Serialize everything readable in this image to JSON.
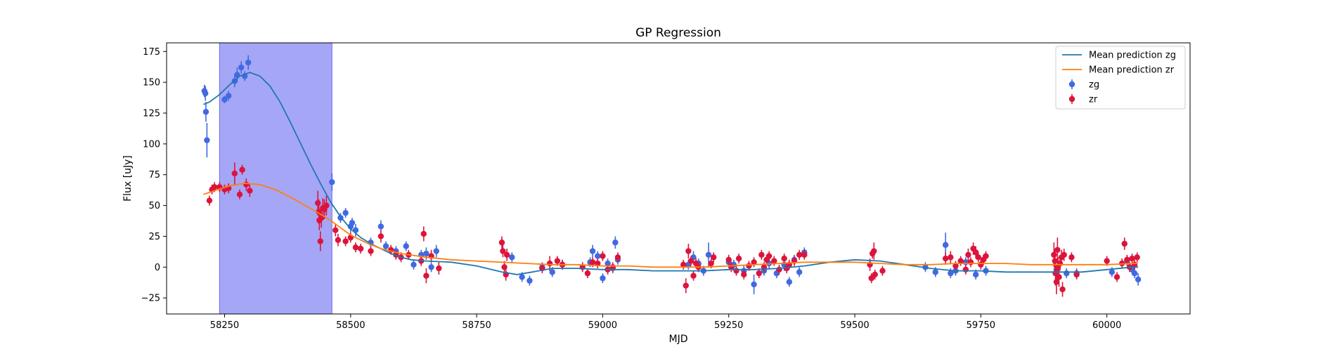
{
  "chart_data": {
    "type": "scatter",
    "title": "GP Regression",
    "xlabel": "MJD",
    "ylabel": "Flux [uJy]",
    "xlim": [
      58135,
      60165
    ],
    "ylim": [
      -38,
      182
    ],
    "xticks": [
      58250,
      58500,
      58750,
      59000,
      59250,
      59500,
      59750,
      60000
    ],
    "yticks": [
      -25,
      0,
      25,
      50,
      75,
      100,
      125,
      150,
      175
    ],
    "legend_position": "top-right",
    "shaded_region": {
      "x_start": 58240,
      "x_end": 58463,
      "color": "#a6a6f7"
    },
    "series": [
      {
        "name": "Mean prediction zg",
        "kind": "line",
        "color": "#1f77b4",
        "x": [
          58208,
          58220,
          58240,
          58260,
          58280,
          58300,
          58320,
          58340,
          58360,
          58380,
          58400,
          58420,
          58440,
          58460,
          58480,
          58500,
          58520,
          58540,
          58560,
          58580,
          58600,
          58620,
          58650,
          58700,
          58750,
          58800,
          58830,
          58860,
          58900,
          58950,
          59000,
          59050,
          59100,
          59150,
          59200,
          59250,
          59300,
          59350,
          59400,
          59450,
          59500,
          59550,
          59600,
          59650,
          59700,
          59750,
          59800,
          59850,
          59900,
          59950,
          60000,
          60050,
          60062
        ],
        "y": [
          132,
          134,
          140,
          148,
          155,
          158,
          155,
          147,
          134,
          118,
          101,
          84,
          68,
          53,
          41,
          31,
          24,
          19,
          15,
          11,
          8,
          6,
          5,
          4,
          1,
          -4,
          -6,
          -4,
          -1,
          -1,
          -2,
          -2,
          -3,
          -3,
          -3,
          -2,
          -2,
          -1,
          1,
          4,
          6,
          5,
          2,
          -1,
          -3,
          -3,
          -4,
          -4,
          -4,
          -4,
          -2,
          0,
          0
        ]
      },
      {
        "name": "Mean prediction zr",
        "kind": "line",
        "color": "#ff7f0e",
        "x": [
          58208,
          58230,
          58260,
          58290,
          58320,
          58350,
          58380,
          58410,
          58440,
          58460,
          58480,
          58500,
          58530,
          58560,
          58600,
          58650,
          58700,
          58750,
          58800,
          58850,
          58900,
          58950,
          59000,
          59050,
          59100,
          59150,
          59200,
          59250,
          59300,
          59350,
          59400,
          59450,
          59500,
          59550,
          59600,
          59650,
          59700,
          59750,
          59800,
          59850,
          59900,
          59950,
          60000,
          60050,
          60062
        ],
        "y": [
          59,
          62,
          66,
          68,
          67,
          63,
          57,
          50,
          43,
          38,
          32,
          26,
          20,
          15,
          11,
          8,
          6,
          5,
          4,
          3,
          2,
          2,
          1,
          1,
          0,
          0,
          0,
          1,
          2,
          3,
          4,
          4,
          4,
          3,
          2,
          2,
          3,
          3,
          3,
          2,
          2,
          2,
          2,
          3,
          3
        ]
      },
      {
        "name": "zg",
        "kind": "errorbar",
        "color": "#4169e1",
        "points": [
          [
            58210,
            143,
            5
          ],
          [
            58212,
            141,
            6
          ],
          [
            58213,
            126,
            8
          ],
          [
            58215,
            103,
            14
          ],
          [
            58250,
            136,
            3
          ],
          [
            58258,
            139,
            4
          ],
          [
            58270,
            151,
            5
          ],
          [
            58275,
            156,
            6
          ],
          [
            58283,
            162,
            5
          ],
          [
            58290,
            155,
            4
          ],
          [
            58297,
            166,
            6
          ],
          [
            58463,
            69,
            7
          ],
          [
            58480,
            40,
            4
          ],
          [
            58490,
            44,
            4
          ],
          [
            58500,
            33,
            5
          ],
          [
            58503,
            36,
            4
          ],
          [
            58510,
            30,
            5
          ],
          [
            58540,
            20,
            4
          ],
          [
            58560,
            33,
            5
          ],
          [
            58570,
            17,
            4
          ],
          [
            58590,
            13,
            4
          ],
          [
            58610,
            17,
            4
          ],
          [
            58625,
            2,
            4
          ],
          [
            58640,
            10,
            4
          ],
          [
            58650,
            11,
            5
          ],
          [
            58660,
            0,
            4
          ],
          [
            58670,
            13,
            5
          ],
          [
            58820,
            8,
            4
          ],
          [
            58840,
            -8,
            4
          ],
          [
            58855,
            -11,
            4
          ],
          [
            58880,
            0,
            4
          ],
          [
            58900,
            -4,
            4
          ],
          [
            58920,
            2,
            4
          ],
          [
            58975,
            4,
            4
          ],
          [
            58980,
            13,
            5
          ],
          [
            58990,
            9,
            4
          ],
          [
            59000,
            -9,
            4
          ],
          [
            59010,
            3,
            4
          ],
          [
            59020,
            -1,
            4
          ],
          [
            59025,
            20,
            5
          ],
          [
            59030,
            6,
            4
          ],
          [
            59170,
            2,
            4
          ],
          [
            59180,
            8,
            5
          ],
          [
            59190,
            3,
            4
          ],
          [
            59200,
            -3,
            4
          ],
          [
            59210,
            10,
            10
          ],
          [
            59250,
            4,
            4
          ],
          [
            59260,
            2,
            4
          ],
          [
            59280,
            -3,
            4
          ],
          [
            59300,
            -14,
            8
          ],
          [
            59320,
            -3,
            4
          ],
          [
            59330,
            3,
            4
          ],
          [
            59345,
            -5,
            4
          ],
          [
            59360,
            2,
            5
          ],
          [
            59370,
            -12,
            4
          ],
          [
            59380,
            6,
            4
          ],
          [
            59390,
            -4,
            4
          ],
          [
            59400,
            12,
            4
          ],
          [
            59640,
            0,
            4
          ],
          [
            59660,
            -4,
            4
          ],
          [
            59680,
            18,
            10
          ],
          [
            59690,
            -5,
            4
          ],
          [
            59700,
            -3,
            4
          ],
          [
            59720,
            4,
            4
          ],
          [
            59740,
            -6,
            4
          ],
          [
            59760,
            -3,
            4
          ],
          [
            59900,
            -2,
            4
          ],
          [
            59920,
            -5,
            4
          ],
          [
            59940,
            -5,
            4
          ],
          [
            60010,
            -4,
            4
          ],
          [
            60040,
            5,
            4
          ],
          [
            60050,
            -2,
            4
          ],
          [
            60055,
            -5,
            4
          ],
          [
            60062,
            -10,
            5
          ]
        ]
      },
      {
        "name": "zr",
        "kind": "errorbar",
        "color": "#dc143c",
        "points": [
          [
            58220,
            54,
            4
          ],
          [
            58225,
            63,
            4
          ],
          [
            58230,
            65,
            4
          ],
          [
            58240,
            65,
            4
          ],
          [
            58250,
            63,
            4
          ],
          [
            58258,
            64,
            4
          ],
          [
            58270,
            76,
            9
          ],
          [
            58280,
            59,
            4
          ],
          [
            58285,
            79,
            4
          ],
          [
            58293,
            67,
            5
          ],
          [
            58300,
            62,
            5
          ],
          [
            58435,
            52,
            10
          ],
          [
            58437,
            45,
            10
          ],
          [
            58438,
            38,
            8
          ],
          [
            58440,
            21,
            8
          ],
          [
            58442,
            40,
            8
          ],
          [
            58445,
            48,
            8
          ],
          [
            58448,
            47,
            8
          ],
          [
            58452,
            50,
            8
          ],
          [
            58470,
            30,
            5
          ],
          [
            58475,
            22,
            5
          ],
          [
            58490,
            21,
            4
          ],
          [
            58500,
            24,
            4
          ],
          [
            58510,
            16,
            4
          ],
          [
            58520,
            15,
            4
          ],
          [
            58540,
            13,
            4
          ],
          [
            58560,
            25,
            5
          ],
          [
            58580,
            14,
            4
          ],
          [
            58590,
            10,
            4
          ],
          [
            58600,
            8,
            4
          ],
          [
            58615,
            10,
            4
          ],
          [
            58640,
            5,
            4
          ],
          [
            58645,
            27,
            6
          ],
          [
            58650,
            -7,
            6
          ],
          [
            58660,
            9,
            5
          ],
          [
            58675,
            -1,
            5
          ],
          [
            58800,
            20,
            5
          ],
          [
            58802,
            13,
            5
          ],
          [
            58805,
            0,
            5
          ],
          [
            58808,
            -6,
            5
          ],
          [
            58810,
            10,
            5
          ],
          [
            58880,
            -1,
            4
          ],
          [
            58895,
            3,
            6
          ],
          [
            58910,
            5,
            4
          ],
          [
            58920,
            2,
            4
          ],
          [
            58960,
            0,
            4
          ],
          [
            58970,
            -5,
            4
          ],
          [
            58980,
            4,
            4
          ],
          [
            58990,
            3,
            4
          ],
          [
            59000,
            9,
            4
          ],
          [
            59010,
            -2,
            4
          ],
          [
            59020,
            0,
            4
          ],
          [
            59030,
            8,
            4
          ],
          [
            59160,
            2,
            4
          ],
          [
            59165,
            -15,
            6
          ],
          [
            59170,
            13,
            6
          ],
          [
            59175,
            5,
            4
          ],
          [
            59180,
            -7,
            4
          ],
          [
            59185,
            3,
            4
          ],
          [
            59190,
            0,
            4
          ],
          [
            59215,
            3,
            4
          ],
          [
            59220,
            8,
            4
          ],
          [
            59250,
            6,
            4
          ],
          [
            59255,
            0,
            4
          ],
          [
            59265,
            -3,
            4
          ],
          [
            59270,
            7,
            4
          ],
          [
            59280,
            -6,
            4
          ],
          [
            59290,
            1,
            4
          ],
          [
            59300,
            4,
            4
          ],
          [
            59310,
            -5,
            4
          ],
          [
            59315,
            10,
            4
          ],
          [
            59320,
            0,
            4
          ],
          [
            59325,
            6,
            4
          ],
          [
            59330,
            9,
            4
          ],
          [
            59340,
            5,
            4
          ],
          [
            59350,
            -2,
            4
          ],
          [
            59360,
            7,
            4
          ],
          [
            59365,
            -1,
            4
          ],
          [
            59370,
            2,
            4
          ],
          [
            59380,
            5,
            4
          ],
          [
            59390,
            10,
            4
          ],
          [
            59400,
            10,
            4
          ],
          [
            59530,
            2,
            5
          ],
          [
            59533,
            -9,
            4
          ],
          [
            59535,
            11,
            4
          ],
          [
            59538,
            13,
            7
          ],
          [
            59540,
            -6,
            4
          ],
          [
            59555,
            -3,
            4
          ],
          [
            59680,
            7,
            5
          ],
          [
            59690,
            8,
            5
          ],
          [
            59700,
            1,
            4
          ],
          [
            59710,
            5,
            4
          ],
          [
            59720,
            -2,
            4
          ],
          [
            59725,
            10,
            5
          ],
          [
            59730,
            4,
            4
          ],
          [
            59735,
            15,
            5
          ],
          [
            59740,
            12,
            5
          ],
          [
            59745,
            8,
            4
          ],
          [
            59750,
            2,
            4
          ],
          [
            59755,
            6,
            4
          ],
          [
            59760,
            9,
            4
          ],
          [
            59895,
            10,
            10
          ],
          [
            59897,
            5,
            10
          ],
          [
            59898,
            -5,
            10
          ],
          [
            59900,
            -12,
            10
          ],
          [
            59902,
            14,
            10
          ],
          [
            59903,
            0,
            8
          ],
          [
            59905,
            -8,
            8
          ],
          [
            59907,
            3,
            6
          ],
          [
            59910,
            8,
            6
          ],
          [
            59912,
            -18,
            6
          ],
          [
            59915,
            10,
            5
          ],
          [
            59930,
            8,
            4
          ],
          [
            59940,
            -6,
            4
          ],
          [
            60000,
            5,
            4
          ],
          [
            60020,
            -8,
            4
          ],
          [
            60030,
            3,
            4
          ],
          [
            60035,
            19,
            5
          ],
          [
            60040,
            6,
            4
          ],
          [
            60045,
            0,
            4
          ],
          [
            60050,
            7,
            4
          ],
          [
            60055,
            2,
            4
          ],
          [
            60060,
            8,
            4
          ]
        ]
      }
    ]
  }
}
